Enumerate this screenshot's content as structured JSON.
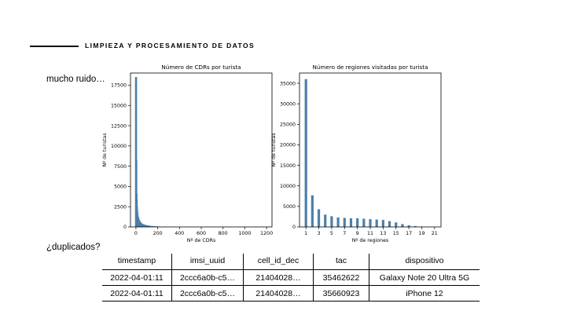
{
  "section": {
    "title": "LIMPIEZA Y PROCESAMIENTO DE DATOS"
  },
  "notes": {
    "noise": "mucho ruido…",
    "duplicates": "¿duplicados?"
  },
  "chart_data": [
    {
      "type": "bar",
      "title": "Número de CDRs por turista",
      "xlabel": "Nº de CDRs",
      "ylabel": "Nº de turistas",
      "xlim": [
        -50,
        1250
      ],
      "ylim": [
        0,
        19000
      ],
      "xticks": [
        0,
        200,
        400,
        600,
        800,
        1000,
        1200
      ],
      "yticks": [
        0,
        2500,
        5000,
        7500,
        10000,
        12500,
        15000,
        17500
      ],
      "bar_color": "#4c7fa8",
      "x": [
        1,
        3,
        5,
        7,
        9,
        11,
        13,
        15,
        17,
        19,
        21,
        23,
        25,
        27,
        29,
        31,
        33,
        35,
        37,
        39,
        42,
        46,
        50,
        55,
        60,
        70,
        80,
        90,
        100,
        115,
        130,
        150,
        170,
        190,
        210,
        240,
        270,
        300,
        340,
        380,
        430,
        480
      ],
      "values": [
        18500,
        8200,
        4100,
        3400,
        2500,
        2000,
        1700,
        1500,
        1300,
        1200,
        1100,
        1000,
        900,
        850,
        800,
        750,
        700,
        650,
        600,
        560,
        520,
        480,
        440,
        400,
        360,
        310,
        270,
        230,
        200,
        170,
        140,
        110,
        90,
        70,
        55,
        45,
        35,
        28,
        20,
        14,
        10,
        6
      ]
    },
    {
      "type": "bar",
      "title": "Número de regiones visitadas por turista",
      "xlabel": "Nº de regiones",
      "ylabel": "Nº de turistas",
      "xlim": [
        0,
        22
      ],
      "ylim": [
        0,
        37500
      ],
      "xticks": [
        1,
        3,
        5,
        7,
        9,
        11,
        13,
        15,
        17,
        19,
        21
      ],
      "yticks": [
        0,
        5000,
        10000,
        15000,
        20000,
        25000,
        30000,
        35000
      ],
      "bar_color": "#4c7fa8",
      "x": [
        1,
        2,
        3,
        4,
        5,
        6,
        7,
        8,
        9,
        10,
        11,
        12,
        13,
        14,
        15,
        16,
        17,
        18,
        19,
        20,
        21
      ],
      "values": [
        36000,
        7700,
        4300,
        3000,
        2600,
        2300,
        2200,
        2100,
        2100,
        2000,
        1900,
        1800,
        1700,
        1400,
        1100,
        700,
        400,
        200,
        100,
        50,
        20
      ]
    }
  ],
  "table": {
    "columns": [
      "timestamp",
      "imsi_uuid",
      "cell_id_dec",
      "tac",
      "dispositivo"
    ],
    "rows": [
      [
        "2022-04-01:11",
        "2ccc6a0b-c5…",
        "21404028…",
        "35462622",
        "Galaxy Note 20 Ultra 5G"
      ],
      [
        "2022-04-01:11",
        "2ccc6a0b-c5…",
        "21404028…",
        "35660923",
        "iPhone 12"
      ]
    ]
  }
}
